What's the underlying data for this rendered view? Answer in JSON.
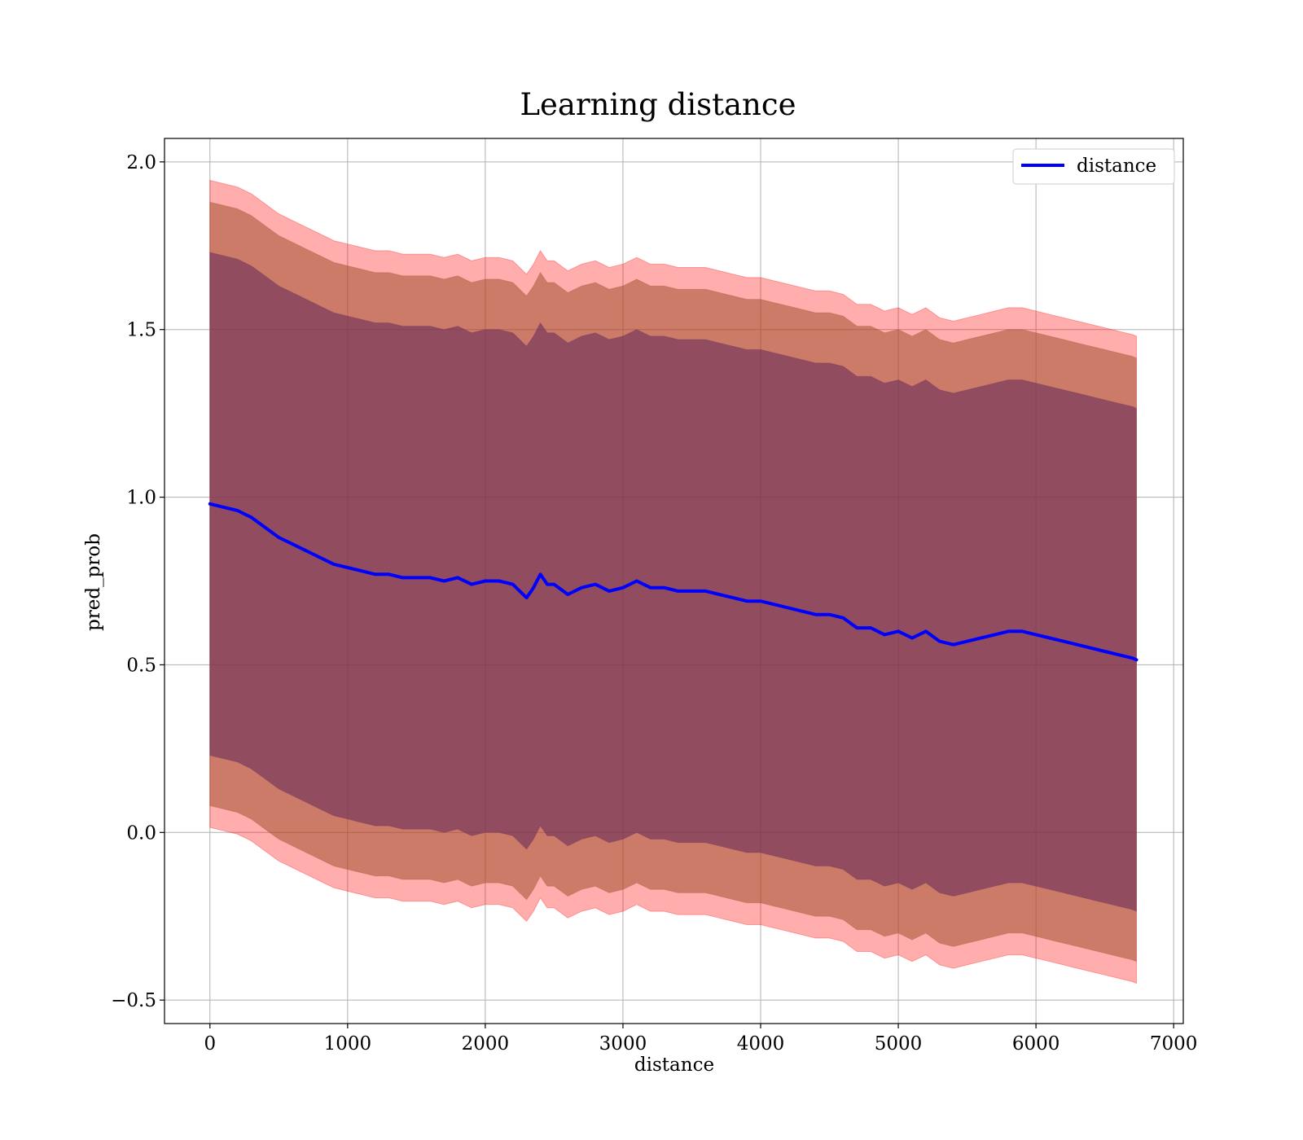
{
  "chart_data": {
    "type": "line",
    "title": "Learning distance",
    "xlabel": "distance",
    "ylabel": "pred_prob",
    "xlim": [
      -330,
      7070
    ],
    "ylim": [
      -0.57,
      2.07
    ],
    "grid": true,
    "legend_position": "top-right",
    "x_ticks": [
      0,
      1000,
      2000,
      3000,
      4000,
      5000,
      6000,
      7000
    ],
    "x_tick_labels": [
      "0",
      "1000",
      "2000",
      "3000",
      "4000",
      "5000",
      "6000",
      "7000"
    ],
    "y_ticks": [
      -0.5,
      0.0,
      0.5,
      1.0,
      1.5,
      2.0
    ],
    "y_tick_labels": [
      "−0.5",
      "0.0",
      "0.5",
      "1.0",
      "1.5",
      "2.0"
    ],
    "colors": {
      "line": "#0000ff",
      "band_outer": "#ff0000",
      "band_middle": "#a0522d",
      "band_inner": "#6b2d5c",
      "grid": "#b0b0b0"
    },
    "series": [
      {
        "name": "distance",
        "x": [
          0,
          100,
          200,
          300,
          400,
          500,
          600,
          700,
          800,
          900,
          1000,
          1100,
          1200,
          1300,
          1400,
          1500,
          1600,
          1700,
          1800,
          1900,
          2000,
          2100,
          2200,
          2300,
          2350,
          2400,
          2450,
          2500,
          2600,
          2700,
          2800,
          2900,
          3000,
          3100,
          3200,
          3300,
          3400,
          3500,
          3600,
          3700,
          3800,
          3900,
          4000,
          4100,
          4200,
          4300,
          4400,
          4500,
          4600,
          4700,
          4800,
          4900,
          5000,
          5100,
          5200,
          5300,
          5400,
          5500,
          5600,
          5700,
          5800,
          5900,
          6000,
          6100,
          6200,
          6300,
          6400,
          6500,
          6600,
          6700,
          6730
        ],
        "y": [
          0.98,
          0.97,
          0.96,
          0.94,
          0.91,
          0.88,
          0.86,
          0.84,
          0.82,
          0.8,
          0.79,
          0.78,
          0.77,
          0.77,
          0.76,
          0.76,
          0.76,
          0.75,
          0.76,
          0.74,
          0.75,
          0.75,
          0.74,
          0.7,
          0.73,
          0.77,
          0.74,
          0.74,
          0.71,
          0.73,
          0.74,
          0.72,
          0.73,
          0.75,
          0.73,
          0.73,
          0.72,
          0.72,
          0.72,
          0.71,
          0.7,
          0.69,
          0.69,
          0.68,
          0.67,
          0.66,
          0.65,
          0.65,
          0.64,
          0.61,
          0.61,
          0.59,
          0.6,
          0.58,
          0.6,
          0.57,
          0.56,
          0.57,
          0.58,
          0.59,
          0.6,
          0.6,
          0.59,
          0.58,
          0.57,
          0.56,
          0.55,
          0.54,
          0.53,
          0.52,
          0.515
        ],
        "band_inner": {
          "upper_offset": 0.75,
          "lower_offset": 0.75
        },
        "band_middle": {
          "upper_offset": 0.9,
          "lower_offset": 0.9
        },
        "band_outer": {
          "upper_offset": 0.965,
          "lower_offset": 0.965
        }
      }
    ]
  }
}
